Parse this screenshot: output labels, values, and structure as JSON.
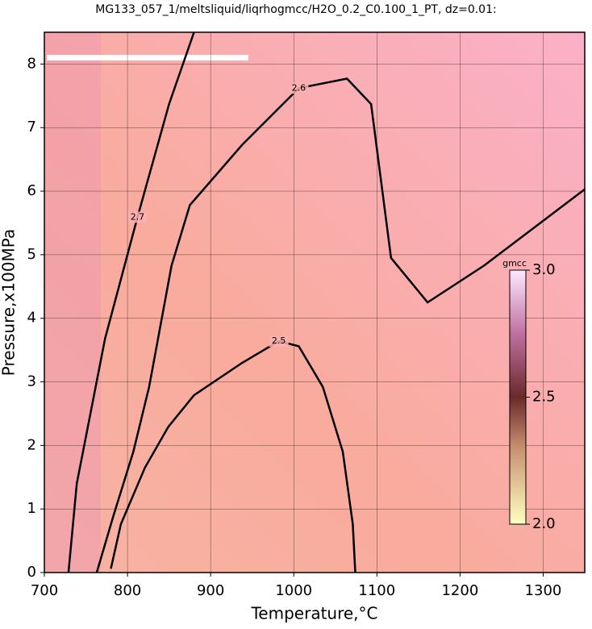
{
  "chart_data": {
    "type": "contour",
    "title": "MG133_057_1/meltsliquid/liqrhogmcc/H2O_0.2_C0.100_1_PT, dz=0.01:",
    "x_label": "Temperature,°C",
    "y_label": "Pressure,x100MPa",
    "xlim": [
      700,
      1350
    ],
    "ylim": [
      0,
      8.5
    ],
    "xticks": [
      700,
      800,
      900,
      1000,
      1100,
      1200,
      1300
    ],
    "yticks": [
      0,
      1,
      2,
      3,
      4,
      5,
      6,
      7,
      8
    ],
    "grid": true,
    "contours": [
      {
        "level": 2.5,
        "x": [
          780,
          792,
          821,
          849,
          880,
          938,
          982,
          1006,
          1035,
          1059,
          1071,
          1074
        ],
        "y": [
          0.06,
          0.76,
          1.65,
          2.29,
          2.79,
          3.3,
          3.64,
          3.56,
          2.92,
          1.9,
          0.76,
          0
        ]
      },
      {
        "level": 2.6,
        "x": [
          763,
          783,
          807,
          826,
          853,
          875,
          938,
          1006,
          1064,
          1093,
          1117,
          1161,
          1229,
          1350
        ],
        "y": [
          0,
          0.89,
          1.9,
          2.92,
          4.83,
          5.78,
          6.73,
          7.62,
          7.77,
          7.37,
          4.95,
          4.25,
          4.83,
          6.03
        ]
      },
      {
        "level": 2.7,
        "x": [
          729,
          739,
          773,
          812,
          850,
          880
        ],
        "y": [
          0,
          1.4,
          3.68,
          5.59,
          7.37,
          8.5
        ]
      }
    ],
    "colorbar": {
      "label": "gmcc",
      "clim": [
        2,
        3
      ],
      "ticks": [
        {
          "value": 2,
          "label": "2.0"
        },
        {
          "value": 2.5,
          "label": "2.5"
        },
        {
          "value": 3,
          "label": "3.0"
        }
      ]
    }
  }
}
